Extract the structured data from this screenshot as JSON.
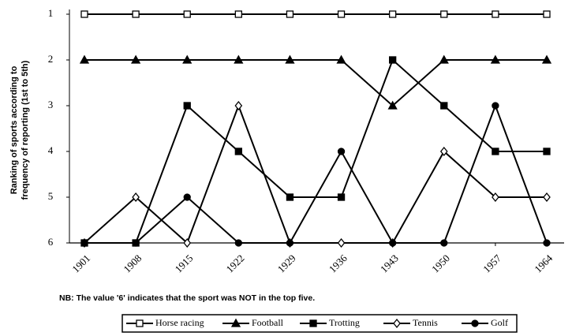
{
  "chart_data": {
    "type": "line",
    "y_label_lines": [
      "Ranking of sports according to",
      "frequency of reporting (1st to 5th)"
    ],
    "note": "NB: The value '6' indicates that the sport was NOT in the top five.",
    "categories": [
      "1901",
      "1908",
      "1915",
      "1922",
      "1929",
      "1936",
      "1943",
      "1950",
      "1957",
      "1964"
    ],
    "ylim": [
      6,
      1
    ],
    "yticks": [
      1,
      2,
      3,
      4,
      5,
      6
    ],
    "series": [
      {
        "name": "Horse racing",
        "color": "#000",
        "marker": "square-open",
        "values": [
          1,
          1,
          1,
          1,
          1,
          1,
          1,
          1,
          1,
          1
        ]
      },
      {
        "name": "Football",
        "color": "#000",
        "marker": "triangle",
        "values": [
          2,
          2,
          2,
          2,
          2,
          2,
          3,
          2,
          2,
          2
        ]
      },
      {
        "name": "Trotting",
        "color": "#000",
        "marker": "square",
        "values": [
          6,
          6,
          3,
          4,
          5,
          5,
          2,
          3,
          4,
          4
        ]
      },
      {
        "name": "Tennis",
        "color": "#000",
        "marker": "diamond-open",
        "values": [
          6,
          5,
          6,
          3,
          6,
          6,
          6,
          4,
          5,
          5
        ]
      },
      {
        "name": "Golf",
        "color": "#000",
        "marker": "circle",
        "values": [
          6,
          6,
          5,
          6,
          6,
          4,
          6,
          6,
          3,
          6
        ]
      }
    ]
  }
}
